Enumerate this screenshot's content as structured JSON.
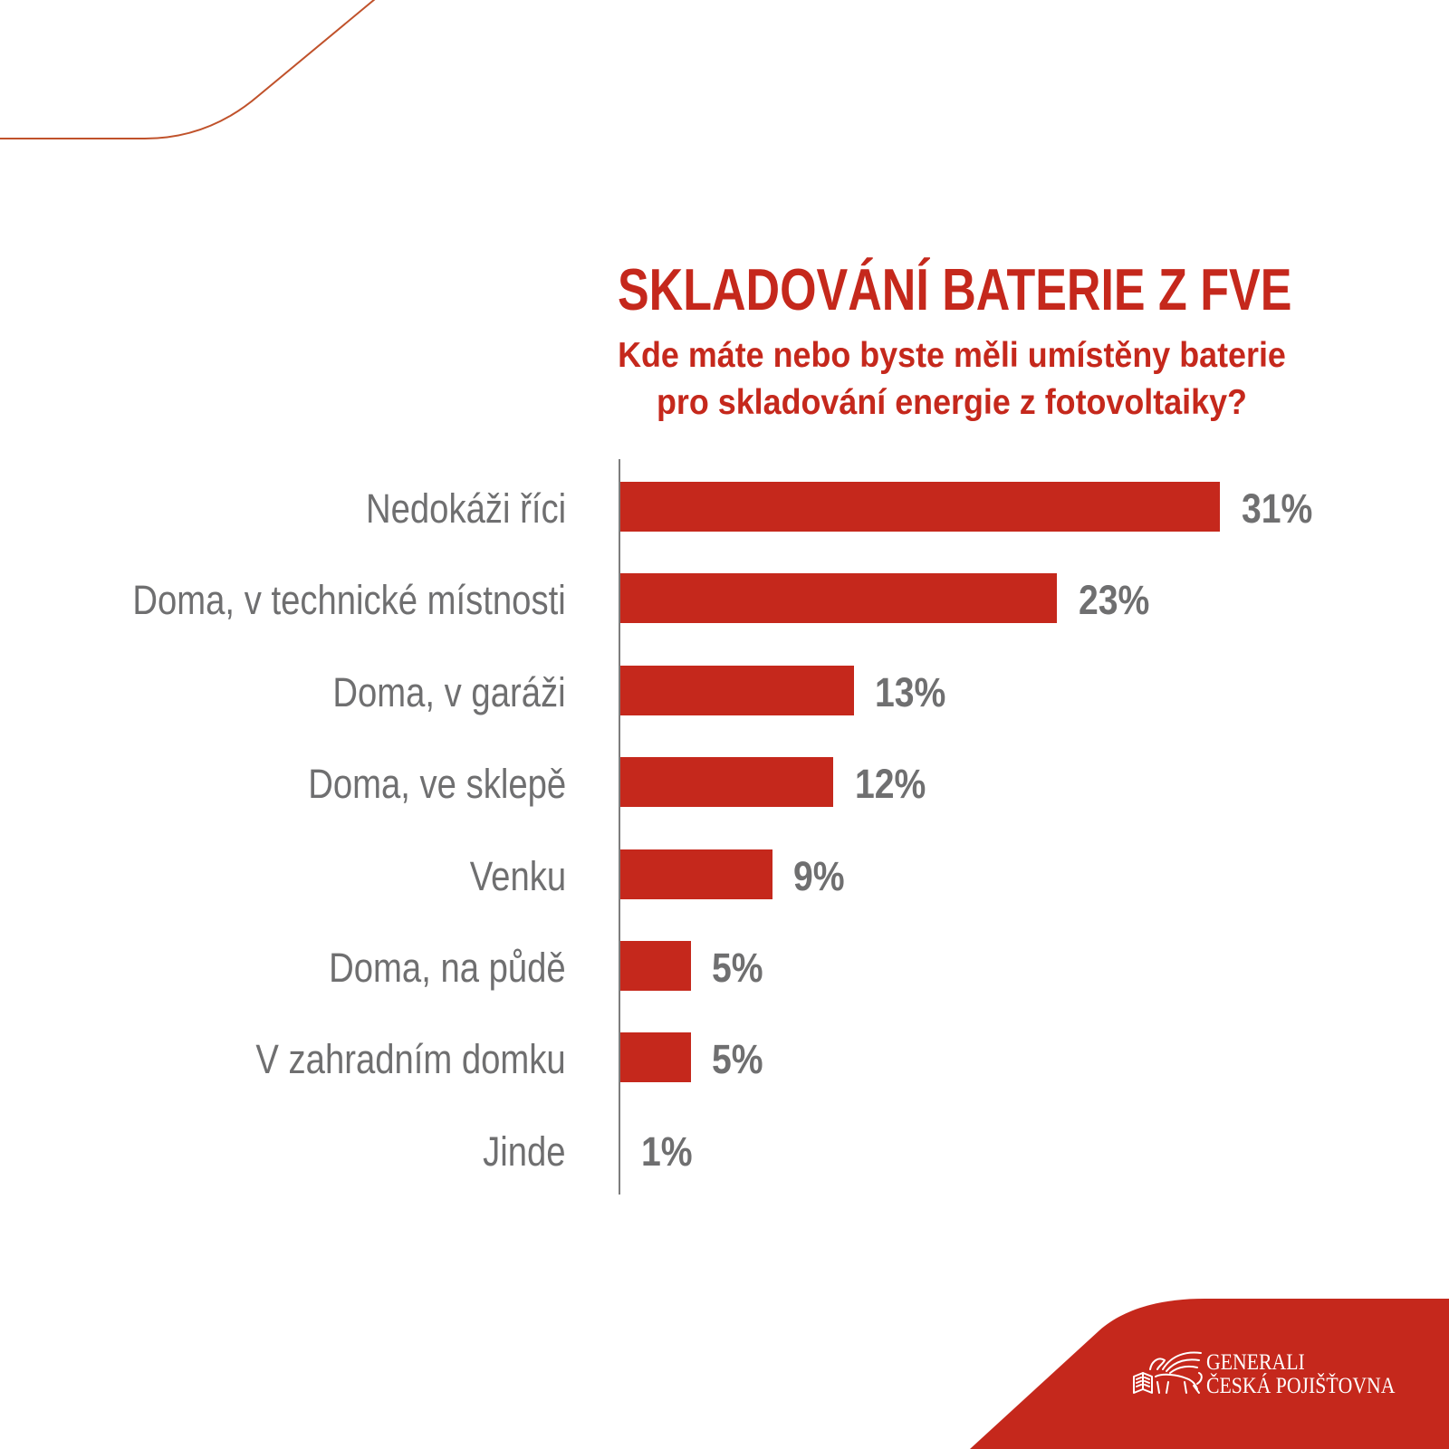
{
  "colors": {
    "accent": "#c5281c",
    "text_gray": "#6f6f70",
    "axis": "#7d7d7d",
    "decor_line": "#c0522b",
    "logo_text": "#ffffff"
  },
  "chart_data": {
    "type": "bar",
    "orientation": "horizontal",
    "title": "SKLADOVÁNÍ BATERIE Z FVE",
    "subtitle": [
      "Kde máte nebo byste měli umístěny baterie",
      "pro skladování energie z fotovoltaiky?"
    ],
    "categories": [
      "Nedokáži říci",
      "Doma, v technické místnosti",
      "Doma, v garáži",
      "Doma, ve sklepě",
      "Venku",
      "Doma, na půdě",
      "V zahradním domku",
      "Jinde"
    ],
    "values": [
      31,
      23,
      13,
      12,
      9,
      5,
      5,
      1
    ],
    "value_labels": [
      "31%",
      "23%",
      "13%",
      "12%",
      "9%",
      "5%",
      "5%",
      "1%"
    ],
    "xlabel": "",
    "ylabel": "",
    "grid": false,
    "legend": "none"
  },
  "logo": {
    "line1": "GENERALI",
    "line2": "ČESKÁ POJIŠŤOVNA",
    "icon": "winged-lion-icon"
  }
}
